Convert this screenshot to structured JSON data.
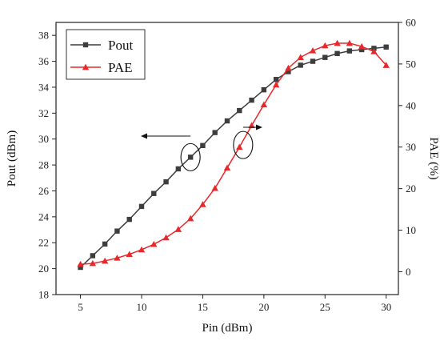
{
  "chart_data": {
    "type": "line",
    "xlabel": "Pin (dBm)",
    "ylabel": "Pout (dBm)",
    "y2label": "PAE (%)",
    "xlim": [
      3,
      31
    ],
    "ylim": [
      18,
      39
    ],
    "y2lim": [
      -5.5,
      60
    ],
    "xticks": [
      5,
      10,
      15,
      20,
      25,
      30
    ],
    "yticks": [
      18,
      20,
      22,
      24,
      26,
      28,
      30,
      32,
      34,
      36,
      38
    ],
    "y2ticks": [
      0,
      10,
      20,
      30,
      40,
      50,
      60
    ],
    "legend_position": "top-left",
    "x": [
      5,
      6,
      7,
      8,
      9,
      10,
      11,
      12,
      13,
      14,
      15,
      16,
      17,
      18,
      19,
      20,
      21,
      22,
      23,
      24,
      25,
      26,
      27,
      28,
      29,
      30
    ],
    "series": [
      {
        "name": "Pout",
        "axis": "left",
        "marker": "square",
        "color": "#3d3d3d",
        "values": [
          20.1,
          21.0,
          21.9,
          22.9,
          23.8,
          24.8,
          25.8,
          26.7,
          27.7,
          28.6,
          29.5,
          30.5,
          31.4,
          32.2,
          33.0,
          33.8,
          34.6,
          35.2,
          35.7,
          36.0,
          36.3,
          36.6,
          36.8,
          36.9,
          37.0,
          37.1
        ]
      },
      {
        "name": "PAE",
        "axis": "right",
        "marker": "triangle",
        "color": "#e8282b",
        "values": [
          1.8,
          2.0,
          2.6,
          3.3,
          4.2,
          5.3,
          6.6,
          8.2,
          10.2,
          12.8,
          16.2,
          20.1,
          25.0,
          30.0,
          35.2,
          40.2,
          45.0,
          49.0,
          51.6,
          53.2,
          54.4,
          55.0,
          55.0,
          54.2,
          53.0,
          49.7
        ]
      }
    ]
  }
}
